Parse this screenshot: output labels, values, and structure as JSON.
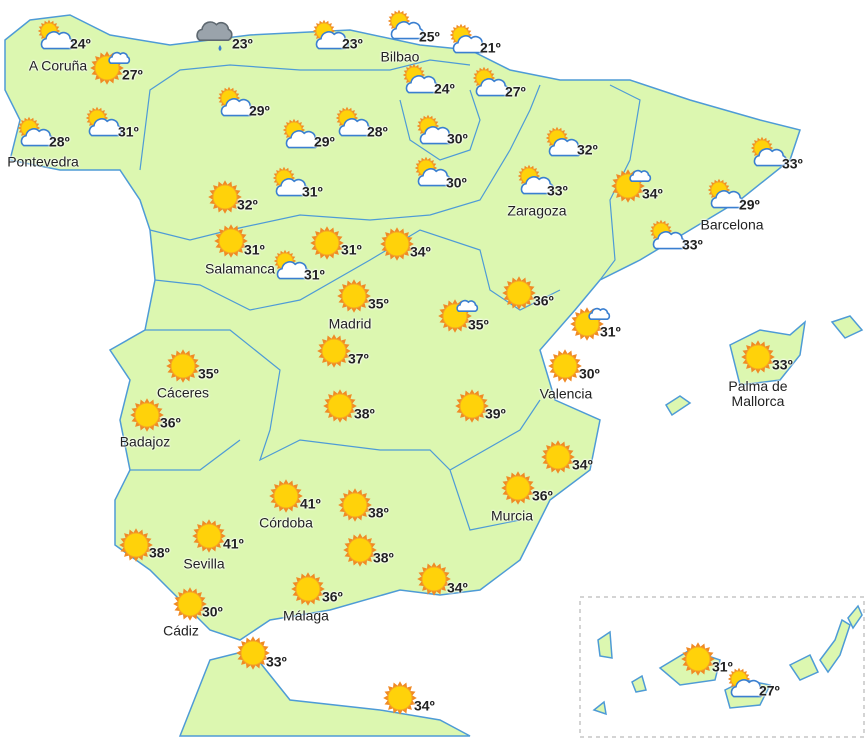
{
  "stations": [
    {
      "temp": "24º",
      "name": "A Coruña"
    },
    {
      "temp": "23º"
    },
    {
      "temp": "23º"
    },
    {
      "temp": "25º",
      "name": "Bilbao"
    },
    {
      "temp": "21º"
    },
    {
      "temp": "27º"
    },
    {
      "temp": "24º"
    },
    {
      "temp": "27º"
    },
    {
      "temp": "28º",
      "name": "Pontevedra"
    },
    {
      "temp": "31º"
    },
    {
      "temp": "29º"
    },
    {
      "temp": "29º"
    },
    {
      "temp": "28º"
    },
    {
      "temp": "30º"
    },
    {
      "temp": "32º"
    },
    {
      "temp": "33º"
    },
    {
      "temp": "30º"
    },
    {
      "temp": "33º",
      "name": "Zaragoza"
    },
    {
      "temp": "34º"
    },
    {
      "temp": "29º",
      "name": "Barcelona"
    },
    {
      "temp": "32º"
    },
    {
      "temp": "31º"
    },
    {
      "temp": "33º"
    },
    {
      "temp": "31º",
      "name": "Salamanca"
    },
    {
      "temp": "31º"
    },
    {
      "temp": "34º"
    },
    {
      "temp": "31º"
    },
    {
      "temp": "35º",
      "name": "Madrid"
    },
    {
      "temp": "35º"
    },
    {
      "temp": "36º"
    },
    {
      "temp": "31º"
    },
    {
      "temp": "33º",
      "name": "Palma de Mallorca"
    },
    {
      "temp": "37º"
    },
    {
      "temp": "35º",
      "name": "Cáceres"
    },
    {
      "temp": "30º",
      "name": "Valencia"
    },
    {
      "temp": "36º",
      "name": "Badajoz"
    },
    {
      "temp": "38º"
    },
    {
      "temp": "39º"
    },
    {
      "temp": "34º"
    },
    {
      "temp": "36º",
      "name": "Murcia"
    },
    {
      "temp": "41º",
      "name": "Córdoba"
    },
    {
      "temp": "38º"
    },
    {
      "temp": "38º"
    },
    {
      "temp": "41º",
      "name": "Sevilla"
    },
    {
      "temp": "38º"
    },
    {
      "temp": "34º"
    },
    {
      "temp": "36º",
      "name": "Málaga"
    },
    {
      "temp": "30º",
      "name": "Cádiz"
    },
    {
      "temp": "33º"
    },
    {
      "temp": "34º"
    },
    {
      "temp": "31º"
    },
    {
      "temp": "27º"
    }
  ]
}
